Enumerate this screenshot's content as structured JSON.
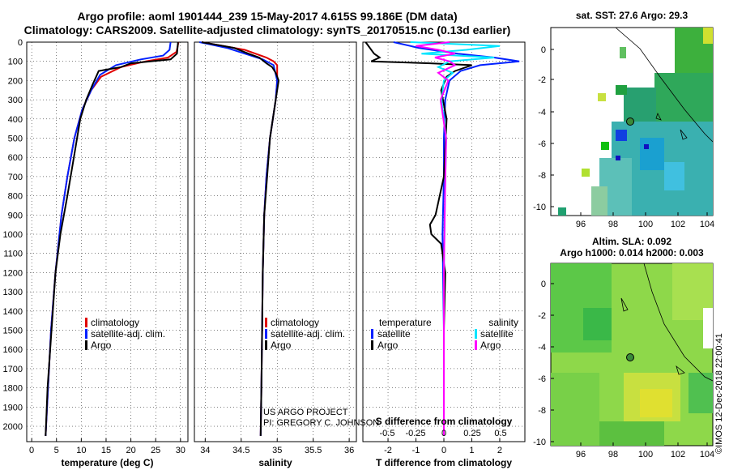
{
  "header": {
    "line1": "Argo profile: aoml 1901444_239 15-May-2017 4.615S 99.186E (DM data)",
    "line2": "Climatology: CARS2009. Satellite-adjusted climatology: synTS_20170515.nc (0.13d earlier)"
  },
  "colors": {
    "climatology": "#e00000",
    "satellite": "#0020ff",
    "argo": "#000000",
    "sat_salinity": "#00e5ff",
    "argo_salinity": "#ff00ff"
  },
  "credits": {
    "line1": "US ARGO PROJECT",
    "line2": "PI: GREGORY C. JOHNSON"
  },
  "stamp": "©IMOS 12-Dec-2018 22:00:41",
  "chart_data": [
    {
      "id": "temperature",
      "type": "line",
      "xlabel": "temperature (deg C)",
      "xlim": [
        -1,
        31.5
      ],
      "ylim": [
        2080,
        0
      ],
      "xticks": [
        "0",
        "5",
        "10",
        "15",
        "20",
        "25",
        "30"
      ],
      "xtick_values": [
        0,
        5,
        10,
        15,
        20,
        25,
        30
      ],
      "legend": [
        "climatology",
        "satellite-adj. clim.",
        "Argo"
      ],
      "series": [
        {
          "name": "climatology",
          "depth": [
            0,
            50,
            80,
            100,
            130,
            180,
            250,
            350,
            500,
            700,
            900,
            1200,
            1500,
            1800,
            2050
          ],
          "values": [
            29.6,
            29.2,
            27.5,
            23,
            18,
            14,
            12,
            10.2,
            8.6,
            7.2,
            6,
            4.8,
            3.9,
            3.3,
            2.8
          ]
        },
        {
          "name": "satellite-adj. clim.",
          "depth": [
            0,
            40,
            70,
            90,
            120,
            170,
            250,
            350,
            500,
            700,
            900,
            1200,
            1500,
            1800,
            2050
          ],
          "values": [
            28,
            27.8,
            26.5,
            22,
            17,
            13.8,
            12,
            10.2,
            8.6,
            7.2,
            6,
            4.8,
            3.9,
            3.3,
            2.8
          ]
        },
        {
          "name": "Argo",
          "depth": [
            0,
            60,
            90,
            110,
            130,
            150,
            180,
            220,
            300,
            400,
            600,
            800,
            1000,
            1200,
            1500,
            1800,
            2050
          ],
          "values": [
            29.5,
            29.3,
            28,
            20,
            18,
            13.5,
            13,
            12.3,
            11,
            9.8,
            8.5,
            7.2,
            5.8,
            4.8,
            4,
            3.2,
            2.8
          ]
        }
      ]
    },
    {
      "id": "salinity",
      "type": "line",
      "xlabel": "salinity",
      "xlim": [
        33.85,
        36.1
      ],
      "ylim": [
        2080,
        0
      ],
      "xticks": [
        "34",
        "34.5",
        "35",
        "35.5",
        "36"
      ],
      "xtick_values": [
        34,
        34.5,
        35,
        35.5,
        36
      ],
      "legend": [
        "climatology",
        "satellite-adj. clim.",
        "Argo"
      ],
      "series": [
        {
          "name": "climatology",
          "depth": [
            0,
            40,
            80,
            100,
            120,
            200,
            300,
            500,
            700,
            900,
            1200,
            1500,
            1800,
            2050
          ],
          "values": [
            33.95,
            34.55,
            34.85,
            34.95,
            35,
            35,
            34.98,
            34.9,
            34.85,
            34.82,
            34.8,
            34.79,
            34.78,
            34.77
          ]
        },
        {
          "name": "satellite-adj. clim.",
          "depth": [
            0,
            30,
            60,
            90,
            120,
            200,
            300,
            500,
            700,
            900,
            1200,
            1500,
            1800,
            2050
          ],
          "values": [
            33.92,
            34.3,
            34.55,
            34.8,
            34.95,
            35,
            34.98,
            34.9,
            34.85,
            34.82,
            34.8,
            34.79,
            34.78,
            34.77
          ]
        },
        {
          "name": "Argo",
          "depth": [
            0,
            30,
            60,
            80,
            110,
            130,
            160,
            200,
            300,
            500,
            700,
            900,
            1200,
            1500,
            1800,
            2050
          ],
          "values": [
            33.95,
            34.4,
            34.6,
            34.75,
            34.85,
            34.93,
            34.98,
            35.02,
            34.98,
            34.9,
            34.86,
            34.82,
            34.8,
            34.79,
            34.78,
            34.77
          ]
        }
      ]
    },
    {
      "id": "differences",
      "type": "line",
      "xlabel": "T difference from climatology",
      "xlabel_top": "S difference from climatology",
      "xlim": [
        -2.9,
        2.9
      ],
      "ylim": [
        2080,
        0
      ],
      "xticks": [
        "-2",
        "-1",
        "0",
        "1",
        "2"
      ],
      "xtick_values": [
        -2,
        -1,
        0,
        1,
        2
      ],
      "xticks_top": [
        "-0.5",
        "-0.25",
        "0",
        "0.25",
        "0.5"
      ],
      "legend_left_title": "temperature",
      "legend_right_title": "salinity",
      "legend_left": [
        "satellite",
        "Argo"
      ],
      "legend_right": [
        "satellite",
        "Argo"
      ],
      "series": [
        {
          "name": "T satellite",
          "depth": [
            0,
            30,
            60,
            80,
            100,
            120,
            150,
            200,
            300,
            500,
            700,
            1000,
            1500,
            2050
          ],
          "values": [
            -1.8,
            -0.9,
            0.5,
            1.8,
            2.7,
            1.3,
            0.6,
            0.2,
            0.05,
            0,
            0,
            -0.05,
            0,
            0
          ]
        },
        {
          "name": "T Argo",
          "depth": [
            0,
            60,
            80,
            100,
            110,
            120,
            150,
            180,
            250,
            400,
            700,
            900,
            950,
            1000,
            1050,
            1200,
            1500,
            2050
          ],
          "values": [
            -2.8,
            -2.5,
            -2.3,
            -2.6,
            -0.5,
            1.0,
            0.4,
            0.1,
            -0.1,
            0.1,
            0,
            -0.3,
            -0.5,
            -0.45,
            -0.1,
            0.05,
            0,
            0
          ]
        },
        {
          "name": "S satellite",
          "depth": [
            0,
            20,
            40,
            60,
            80,
            100,
            130,
            160,
            200,
            300,
            500,
            800,
            1200,
            1600,
            2050
          ],
          "values": [
            -0.3,
            0.5,
            0.2,
            -0.2,
            0.45,
            0.05,
            -0.05,
            0.08,
            0,
            -0.02,
            0.02,
            0.01,
            0,
            0,
            0
          ]
        },
        {
          "name": "S Argo",
          "depth": [
            0,
            20,
            40,
            60,
            80,
            100,
            120,
            160,
            200,
            300,
            500,
            800,
            1200,
            1600,
            2050
          ],
          "values": [
            0.05,
            -0.25,
            -0.05,
            0.1,
            -0.08,
            0.05,
            0.1,
            -0.05,
            0.04,
            -0.03,
            0.02,
            0.01,
            0,
            0,
            0
          ]
        }
      ]
    }
  ],
  "maps": [
    {
      "title": "sat. SST: 27.6 Argo: 29.3",
      "xticks": [
        "96",
        "98",
        "100",
        "102",
        "104"
      ],
      "yticks": [
        "0",
        "-2",
        "-4",
        "-6",
        "-8",
        "-10"
      ]
    },
    {
      "title_line1": "Altim. SLA: 0.092",
      "title_line2": "Argo h1000: 0.014 h2000: 0.003",
      "xticks": [
        "96",
        "98",
        "100",
        "102",
        "104"
      ],
      "yticks": [
        "0",
        "-2",
        "-4",
        "-6",
        "-8",
        "-10"
      ]
    }
  ]
}
